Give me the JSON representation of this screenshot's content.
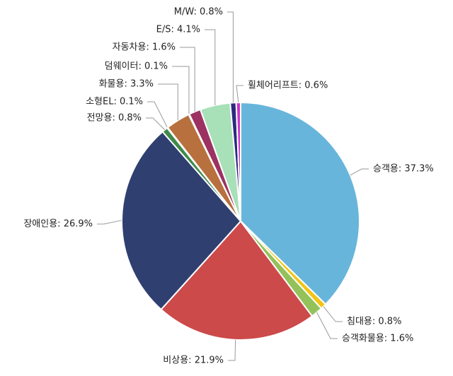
{
  "chart_data": {
    "type": "pie",
    "values": [
      37.3,
      0.8,
      1.6,
      21.9,
      26.9,
      0.8,
      0.1,
      3.3,
      0.1,
      1.6,
      4.1,
      0.8,
      0.6
    ],
    "value_labels": [
      "승객용: 37.3%",
      "침대용: 0.8%",
      "승객화물용: 1.6%",
      "비상용: 21.9%",
      "장애인용: 26.9%",
      "전망용: 0.8%",
      "소형EL: 0.1%",
      "화물용: 3.3%",
      "덤웨이터: 0.1%",
      "자동차용: 1.6%",
      "E/S: 4.1%",
      "M/W: 0.8%",
      "휠체어리프트: 0.6%"
    ],
    "colors": [
      "#68b5dc",
      "#f2c416",
      "#93c25a",
      "#cc4a4a",
      "#2f3f70",
      "#3f8a4a",
      "#6b8e3a",
      "#b8703e",
      "#7a4a8a",
      "#9b3262",
      "#a8e0b8",
      "#2b2a80",
      "#cc33cc"
    ]
  }
}
